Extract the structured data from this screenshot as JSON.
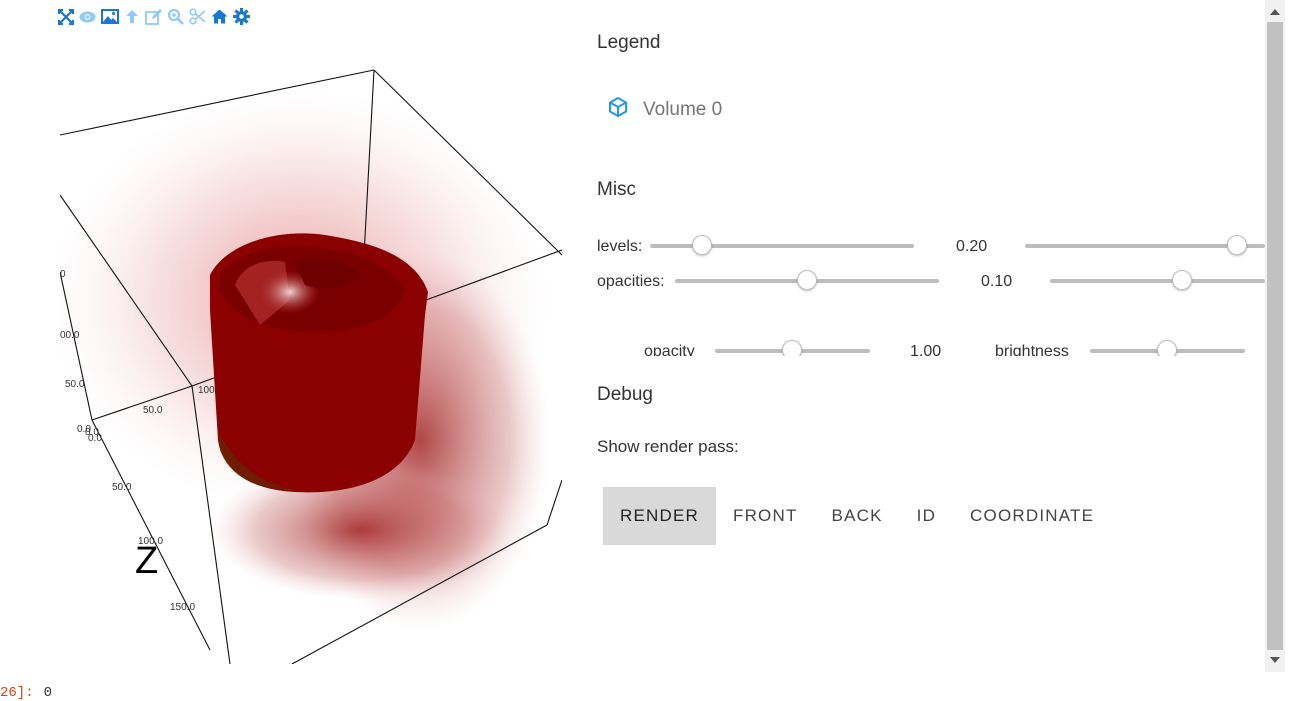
{
  "toolbar": {
    "buttons": [
      {
        "name": "fullscreen-icon",
        "color": "#1976d2"
      },
      {
        "name": "eye-icon",
        "color": "#90caf9"
      },
      {
        "name": "image-icon",
        "color": "#1976d2"
      },
      {
        "name": "arrow-up-icon",
        "color": "#90caf9"
      },
      {
        "name": "edit-icon",
        "color": "#90caf9"
      },
      {
        "name": "zoom-icon",
        "color": "#90caf9"
      },
      {
        "name": "scissors-icon",
        "color": "#90caf9"
      },
      {
        "name": "home-icon",
        "color": "#1976d2"
      },
      {
        "name": "gear-icon",
        "color": "#1976d2"
      }
    ]
  },
  "viewport": {
    "ticks": [
      "0",
      "00.0",
      "50.0",
      "0.0",
      "0.0",
      "0.0",
      "50.0",
      "100",
      "50.0",
      "100.0",
      "150.0"
    ],
    "z_label": "Z",
    "volume_color": "#8b0000"
  },
  "legend": {
    "title": "Legend",
    "items": [
      {
        "label": "Volume 0",
        "icon": "cube-icon",
        "color": "#2196f3"
      }
    ]
  },
  "misc": {
    "title": "Misc",
    "levels_label": "levels:",
    "levels_value": "0.20",
    "levels_pos": [
      0.2,
      0.95
    ],
    "opacities_label": "opacities:",
    "opacities_value": "0.10",
    "opacities_pos": [
      0.5,
      0.6
    ],
    "opacity_label": "opacity",
    "opacity_value": "1.00",
    "opacity_pos": 0.5,
    "brightness_label": "brightness",
    "brightness_pos": 0.5
  },
  "debug": {
    "title": "Debug",
    "show_render_pass_label": "Show render pass:",
    "buttons": [
      "RENDER",
      "FRONT",
      "BACK",
      "ID",
      "COORDINATE"
    ],
    "active": "RENDER"
  },
  "cell_output": {
    "prompt": "26]:",
    "value": "0"
  }
}
